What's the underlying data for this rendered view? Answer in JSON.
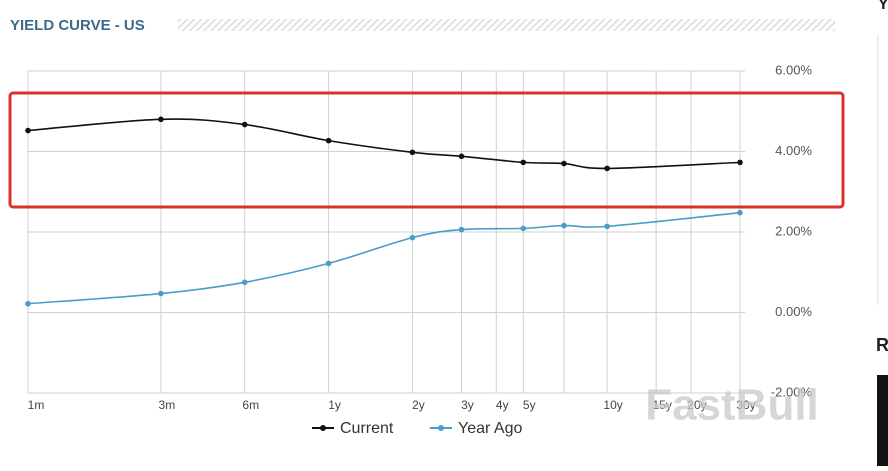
{
  "chart_data": {
    "type": "line",
    "title": "YIELD CURVE - US",
    "xscale": "log",
    "xlim": [
      1,
      360
    ],
    "xticks": [
      {
        "value": 1,
        "label": "1m"
      },
      {
        "value": 3,
        "label": "3m"
      },
      {
        "value": 6,
        "label": "6m"
      },
      {
        "value": 12,
        "label": "1y"
      },
      {
        "value": 24,
        "label": "2y"
      },
      {
        "value": 36,
        "label": "3y"
      },
      {
        "value": 48,
        "label": "4y"
      },
      {
        "value": 60,
        "label": "5y"
      },
      {
        "value": 84,
        "label": null
      },
      {
        "value": 120,
        "label": "10y"
      },
      {
        "value": 180,
        "label": "15y"
      },
      {
        "value": 240,
        "label": "20y"
      },
      {
        "value": 360,
        "label": "30y"
      }
    ],
    "ylim": [
      -2,
      6
    ],
    "yticks": [
      {
        "value": 6,
        "label": "6.00%"
      },
      {
        "value": 4,
        "label": "4.00%"
      },
      {
        "value": 2,
        "label": "2.00%"
      },
      {
        "value": 0,
        "label": "0.00%"
      },
      {
        "value": -2,
        "label": "-2.00%"
      }
    ],
    "grid": true,
    "x": [
      1,
      3,
      6,
      12,
      24,
      36,
      60,
      84,
      120,
      360
    ],
    "series": [
      {
        "name": "Current",
        "color": "#111111",
        "values": [
          4.52,
          4.8,
          4.67,
          4.27,
          3.98,
          3.88,
          3.73,
          3.7,
          3.58,
          3.73
        ]
      },
      {
        "name": "Year Ago",
        "color": "#4a9cc9",
        "values": [
          0.22,
          0.47,
          0.75,
          1.22,
          1.86,
          2.06,
          2.09,
          2.16,
          2.14,
          2.48
        ]
      }
    ],
    "legend": "bottom",
    "watermark": "FastBull"
  },
  "sidebar": {
    "heading_1": "Y",
    "heading_2": "R"
  }
}
